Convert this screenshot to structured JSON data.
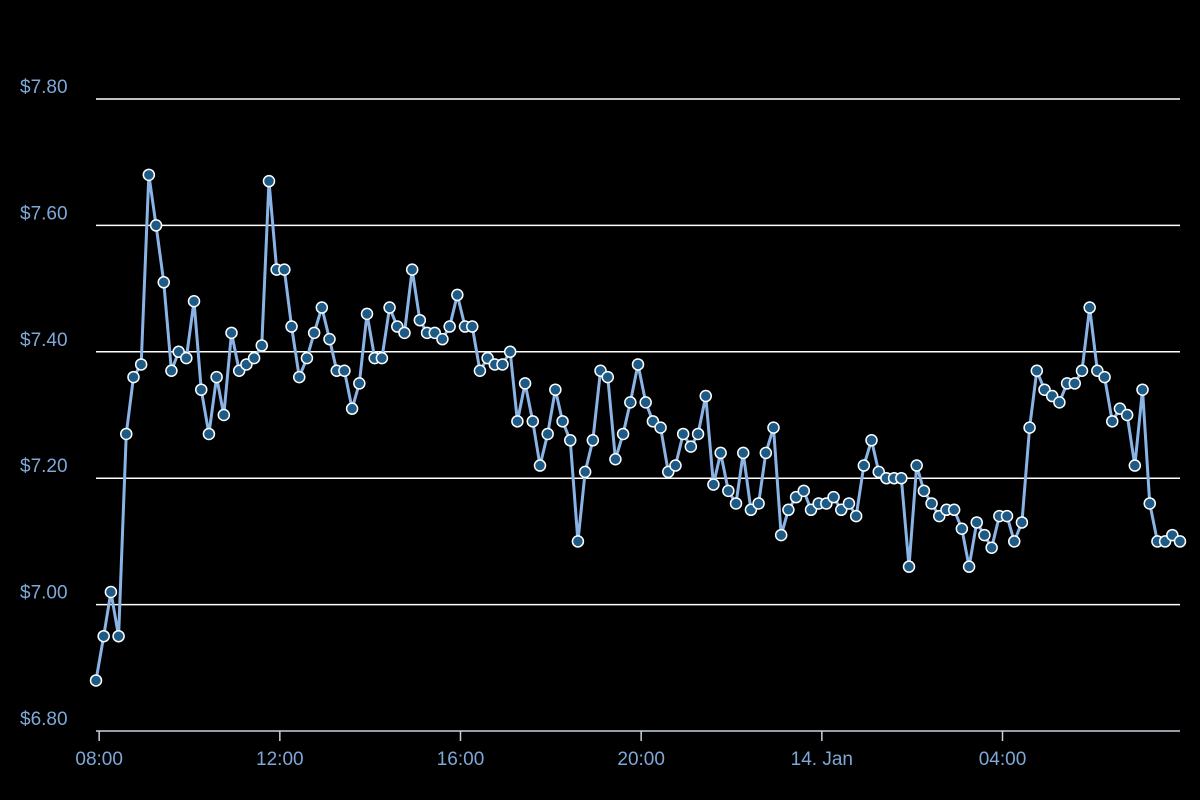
{
  "chart_data": {
    "type": "line",
    "x": [
      7.93,
      8.1,
      8.26,
      8.43,
      8.6,
      8.76,
      8.93,
      9.1,
      9.26,
      9.43,
      9.6,
      9.76,
      9.93,
      10.1,
      10.26,
      10.43,
      10.6,
      10.76,
      10.93,
      11.1,
      11.26,
      11.43,
      11.6,
      11.76,
      11.93,
      12.1,
      12.26,
      12.43,
      12.6,
      12.76,
      12.93,
      13.1,
      13.26,
      13.43,
      13.6,
      13.76,
      13.93,
      14.1,
      14.26,
      14.43,
      14.6,
      14.76,
      14.93,
      15.1,
      15.26,
      15.43,
      15.6,
      15.76,
      15.93,
      16.1,
      16.26,
      16.43,
      16.6,
      16.76,
      16.93,
      17.1,
      17.26,
      17.43,
      17.6,
      17.76,
      17.93,
      18.1,
      18.26,
      18.43,
      18.6,
      18.76,
      18.93,
      19.1,
      19.26,
      19.43,
      19.6,
      19.76,
      19.93,
      20.1,
      20.26,
      20.43,
      20.6,
      20.76,
      20.93,
      21.1,
      21.26,
      21.43,
      21.6,
      21.76,
      21.93,
      22.1,
      22.26,
      22.43,
      22.6,
      22.76,
      22.93,
      23.1,
      23.26,
      23.43,
      23.6,
      23.76,
      23.93,
      24.1,
      24.26,
      24.43,
      24.6,
      24.76,
      24.93,
      25.1,
      25.26,
      25.43,
      25.6,
      25.76,
      25.93,
      26.1,
      26.26,
      26.43,
      26.6,
      26.76,
      26.93,
      27.1,
      27.26,
      27.43,
      27.6,
      27.76,
      27.93,
      28.1,
      28.26,
      28.43,
      28.6,
      28.76,
      28.93,
      29.1,
      29.26,
      29.43,
      29.6,
      29.76,
      29.93,
      30.1,
      30.26,
      30.43,
      30.6,
      30.76,
      30.93,
      31.1,
      31.26,
      31.43,
      31.6,
      31.76,
      31.93
    ],
    "values": [
      6.88,
      6.95,
      7.02,
      6.95,
      7.27,
      7.36,
      7.38,
      7.68,
      7.6,
      7.51,
      7.37,
      7.4,
      7.39,
      7.48,
      7.34,
      7.27,
      7.36,
      7.3,
      7.43,
      7.37,
      7.38,
      7.39,
      7.41,
      7.67,
      7.53,
      7.53,
      7.44,
      7.36,
      7.39,
      7.43,
      7.47,
      7.42,
      7.37,
      7.37,
      7.31,
      7.35,
      7.46,
      7.39,
      7.39,
      7.47,
      7.44,
      7.43,
      7.53,
      7.45,
      7.43,
      7.43,
      7.42,
      7.44,
      7.49,
      7.44,
      7.44,
      7.37,
      7.39,
      7.38,
      7.38,
      7.4,
      7.29,
      7.35,
      7.29,
      7.22,
      7.27,
      7.34,
      7.29,
      7.26,
      7.1,
      7.21,
      7.26,
      7.37,
      7.36,
      7.23,
      7.27,
      7.32,
      7.38,
      7.32,
      7.29,
      7.28,
      7.21,
      7.22,
      7.27,
      7.25,
      7.27,
      7.33,
      7.19,
      7.24,
      7.18,
      7.16,
      7.24,
      7.15,
      7.16,
      7.24,
      7.28,
      7.11,
      7.15,
      7.17,
      7.18,
      7.15,
      7.16,
      7.16,
      7.17,
      7.15,
      7.16,
      7.14,
      7.22,
      7.26,
      7.21,
      7.2,
      7.2,
      7.2,
      7.06,
      7.22,
      7.18,
      7.16,
      7.14,
      7.15,
      7.15,
      7.12,
      7.06,
      7.13,
      7.11,
      7.09,
      7.14,
      7.14,
      7.1,
      7.13,
      7.28,
      7.37,
      7.34,
      7.33,
      7.32,
      7.35,
      7.35,
      7.37,
      7.47,
      7.37,
      7.36,
      7.29,
      7.31,
      7.3,
      7.22,
      7.34,
      7.16,
      7.1,
      7.1,
      7.11,
      7.1
    ],
    "color": "#8ab4e6",
    "marker_color": "#1d5a85",
    "xlim": [
      7.93,
      31.93
    ],
    "xticks": [
      {
        "value": 8,
        "label": "08:00"
      },
      {
        "value": 12,
        "label": "12:00"
      },
      {
        "value": 16,
        "label": "16:00"
      },
      {
        "value": 20,
        "label": "20:00"
      },
      {
        "value": 24,
        "label": "14. Jan"
      },
      {
        "value": 28,
        "label": "04:00"
      }
    ],
    "ylim": [
      6.8,
      7.8
    ],
    "yticks": [
      {
        "value": 6.8,
        "label": "$6.80"
      },
      {
        "value": 7.0,
        "label": "$7.00"
      },
      {
        "value": 7.2,
        "label": "$7.20"
      },
      {
        "value": 7.4,
        "label": "$7.40"
      },
      {
        "value": 7.6,
        "label": "$7.60"
      },
      {
        "value": 7.8,
        "label": "$7.80"
      }
    ],
    "grid": true
  }
}
